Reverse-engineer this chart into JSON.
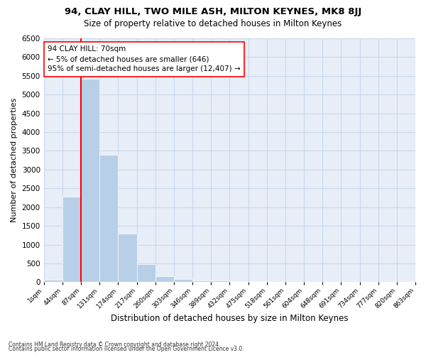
{
  "title": "94, CLAY HILL, TWO MILE ASH, MILTON KEYNES, MK8 8JJ",
  "subtitle": "Size of property relative to detached houses in Milton Keynes",
  "xlabel": "Distribution of detached houses by size in Milton Keynes",
  "ylabel": "Number of detached properties",
  "footnote1": "Contains HM Land Registry data © Crown copyright and database right 2024.",
  "footnote2": "Contains public sector information licensed under the Open Government Licence v3.0.",
  "annotation_line1": "94 CLAY HILL: 70sqm",
  "annotation_line2": "← 5% of detached houses are smaller (646)",
  "annotation_line3": "95% of semi-detached houses are larger (12,407) →",
  "property_bin_index": 1,
  "bar_color": "#b8cfe8",
  "grid_color": "#c8d8ec",
  "background_color": "#e8eef8",
  "ylim": [
    0,
    6500
  ],
  "yticks": [
    0,
    500,
    1000,
    1500,
    2000,
    2500,
    3000,
    3500,
    4000,
    4500,
    5000,
    5500,
    6000,
    6500
  ],
  "bin_labels": [
    "1sqm",
    "44sqm",
    "87sqm",
    "131sqm",
    "174sqm",
    "217sqm",
    "260sqm",
    "303sqm",
    "346sqm",
    "389sqm",
    "432sqm",
    "475sqm",
    "518sqm",
    "561sqm",
    "604sqm",
    "648sqm",
    "691sqm",
    "734sqm",
    "777sqm",
    "820sqm",
    "863sqm"
  ],
  "bar_heights": [
    70,
    2280,
    5430,
    3390,
    1290,
    475,
    165,
    75,
    50,
    45,
    35,
    30,
    0,
    0,
    0,
    0,
    0,
    0,
    0,
    0
  ]
}
